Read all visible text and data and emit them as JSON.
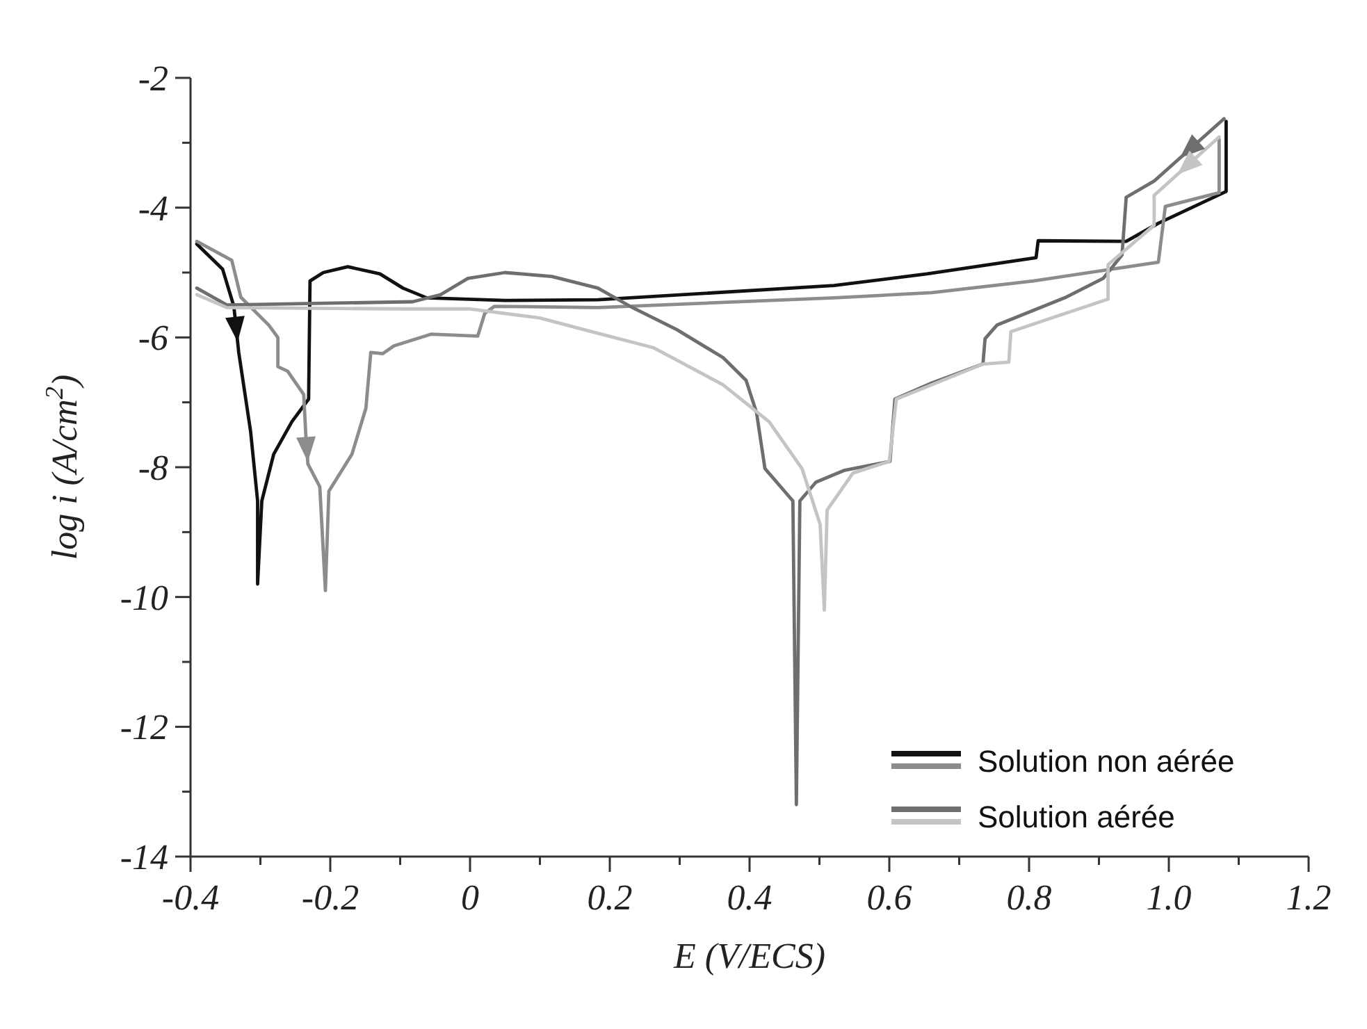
{
  "chart_data": {
    "type": "line",
    "xlabel": "E (V/ECS)",
    "ylabel": "log i (A/cm$^{2}$)",
    "xlim": [
      -0.4,
      1.2
    ],
    "ylim": [
      -14,
      -2
    ],
    "xticks": [
      -0.4,
      {
        "value": -0.3,
        "label": null
      },
      -0.2,
      {
        "value": -0.1,
        "label": null
      },
      0,
      {
        "value": 0.1,
        "label": null
      },
      0.2,
      {
        "value": 0.3,
        "label": null
      },
      0.4,
      {
        "value": 0.5,
        "label": null
      },
      0.6,
      {
        "value": 0.7,
        "label": null
      },
      0.8,
      {
        "value": 0.9,
        "label": null
      },
      {
        "value": 1,
        "label": "1.0"
      },
      {
        "value": 1.1,
        "label": null
      },
      1.2
    ],
    "yticks": [
      -14,
      {
        "value": -13,
        "label": null
      },
      -12,
      {
        "value": -11,
        "label": null
      },
      -10,
      {
        "value": -9,
        "label": null
      },
      -8,
      {
        "value": -7,
        "label": null
      },
      -6,
      {
        "value": -5,
        "label": null
      },
      -4,
      {
        "value": -3,
        "label": null
      },
      -2
    ],
    "grid": false,
    "legend": "bottom right",
    "marker": "none",
    "line_style": "solid",
    "series": [
      {
        "name": "Solution non aérée",
        "color": "#111111",
        "x": [
          -0.391,
          -0.354,
          -0.338,
          -0.331,
          -0.314,
          -0.304,
          -0.304,
          -0.298,
          -0.281,
          -0.255,
          -0.231,
          -0.229,
          -0.21,
          -0.175,
          -0.129,
          -0.096,
          -0.062,
          0.05,
          0.183,
          0.521,
          0.654,
          0.81,
          0.813,
          0.939,
          0.985,
          1.082,
          1.082
        ],
        "values": [
          -4.56,
          -4.95,
          -5.52,
          -6.23,
          -7.45,
          -8.52,
          -9.8,
          -8.52,
          -7.8,
          -7.3,
          -6.95,
          -5.13,
          -5.0,
          -4.91,
          -5.02,
          -5.24,
          -5.39,
          -5.43,
          -5.42,
          -5.2,
          -5.02,
          -4.77,
          -4.51,
          -4.52,
          -4.24,
          -3.75,
          -2.67
        ]
      },
      {
        "color": "#8c8c8c",
        "x": [
          -0.391,
          -0.341,
          -0.328,
          -0.288,
          -0.275,
          -0.275,
          -0.261,
          -0.238,
          -0.235,
          -0.232,
          -0.215,
          -0.207,
          -0.202,
          -0.169,
          -0.149,
          -0.142,
          -0.125,
          -0.109,
          -0.056,
          0.011,
          0.021,
          0.035,
          0.183,
          0.521,
          0.661,
          0.806,
          0.985,
          0.995,
          1.072,
          1.072
        ],
        "values": [
          -4.52,
          -4.81,
          -5.38,
          -5.81,
          -6.0,
          -6.45,
          -6.52,
          -6.88,
          -7.5,
          -7.95,
          -8.3,
          -9.9,
          -8.37,
          -7.8,
          -7.09,
          -6.23,
          -6.25,
          -6.13,
          -5.95,
          -5.98,
          -5.63,
          -5.52,
          -5.54,
          -5.39,
          -5.31,
          -5.13,
          -4.84,
          -3.98,
          -3.77,
          -2.95
        ]
      },
      {
        "name": "Solution aérée",
        "color": "#6e6e6e",
        "x": [
          -0.391,
          -0.348,
          -0.082,
          -0.042,
          -0.003,
          0.05,
          0.117,
          0.183,
          0.229,
          0.296,
          0.362,
          0.395,
          0.41,
          0.422,
          0.462,
          0.467,
          0.472,
          0.495,
          0.535,
          0.601,
          0.608,
          0.661,
          0.734,
          0.737,
          0.754,
          0.853,
          0.906,
          0.933,
          0.939,
          0.979,
          1.079
        ],
        "values": [
          -5.24,
          -5.5,
          -5.45,
          -5.34,
          -5.09,
          -5.0,
          -5.06,
          -5.24,
          -5.52,
          -5.88,
          -6.31,
          -6.66,
          -7.16,
          -8.02,
          -8.52,
          -13.2,
          -8.52,
          -8.23,
          -8.05,
          -7.91,
          -6.95,
          -6.7,
          -6.41,
          -6.02,
          -5.81,
          -5.38,
          -5.09,
          -4.73,
          -3.84,
          -3.59,
          -2.63
        ]
      },
      {
        "color": "#c4c4c4",
        "x": [
          -0.391,
          -0.348,
          -0.1,
          0.0,
          0.1,
          0.163,
          0.263,
          0.362,
          0.428,
          0.475,
          0.501,
          0.507,
          0.511,
          0.548,
          0.6,
          0.61,
          0.734,
          0.771,
          0.774,
          0.913,
          0.913,
          0.979,
          0.979,
          1.072
        ],
        "values": [
          -5.34,
          -5.54,
          -5.56,
          -5.56,
          -5.7,
          -5.88,
          -6.16,
          -6.73,
          -7.3,
          -8.02,
          -8.88,
          -10.2,
          -8.66,
          -8.09,
          -7.91,
          -6.95,
          -6.41,
          -6.38,
          -5.91,
          -5.41,
          -4.88,
          -4.27,
          -3.81,
          -2.91
        ]
      }
    ]
  }
}
